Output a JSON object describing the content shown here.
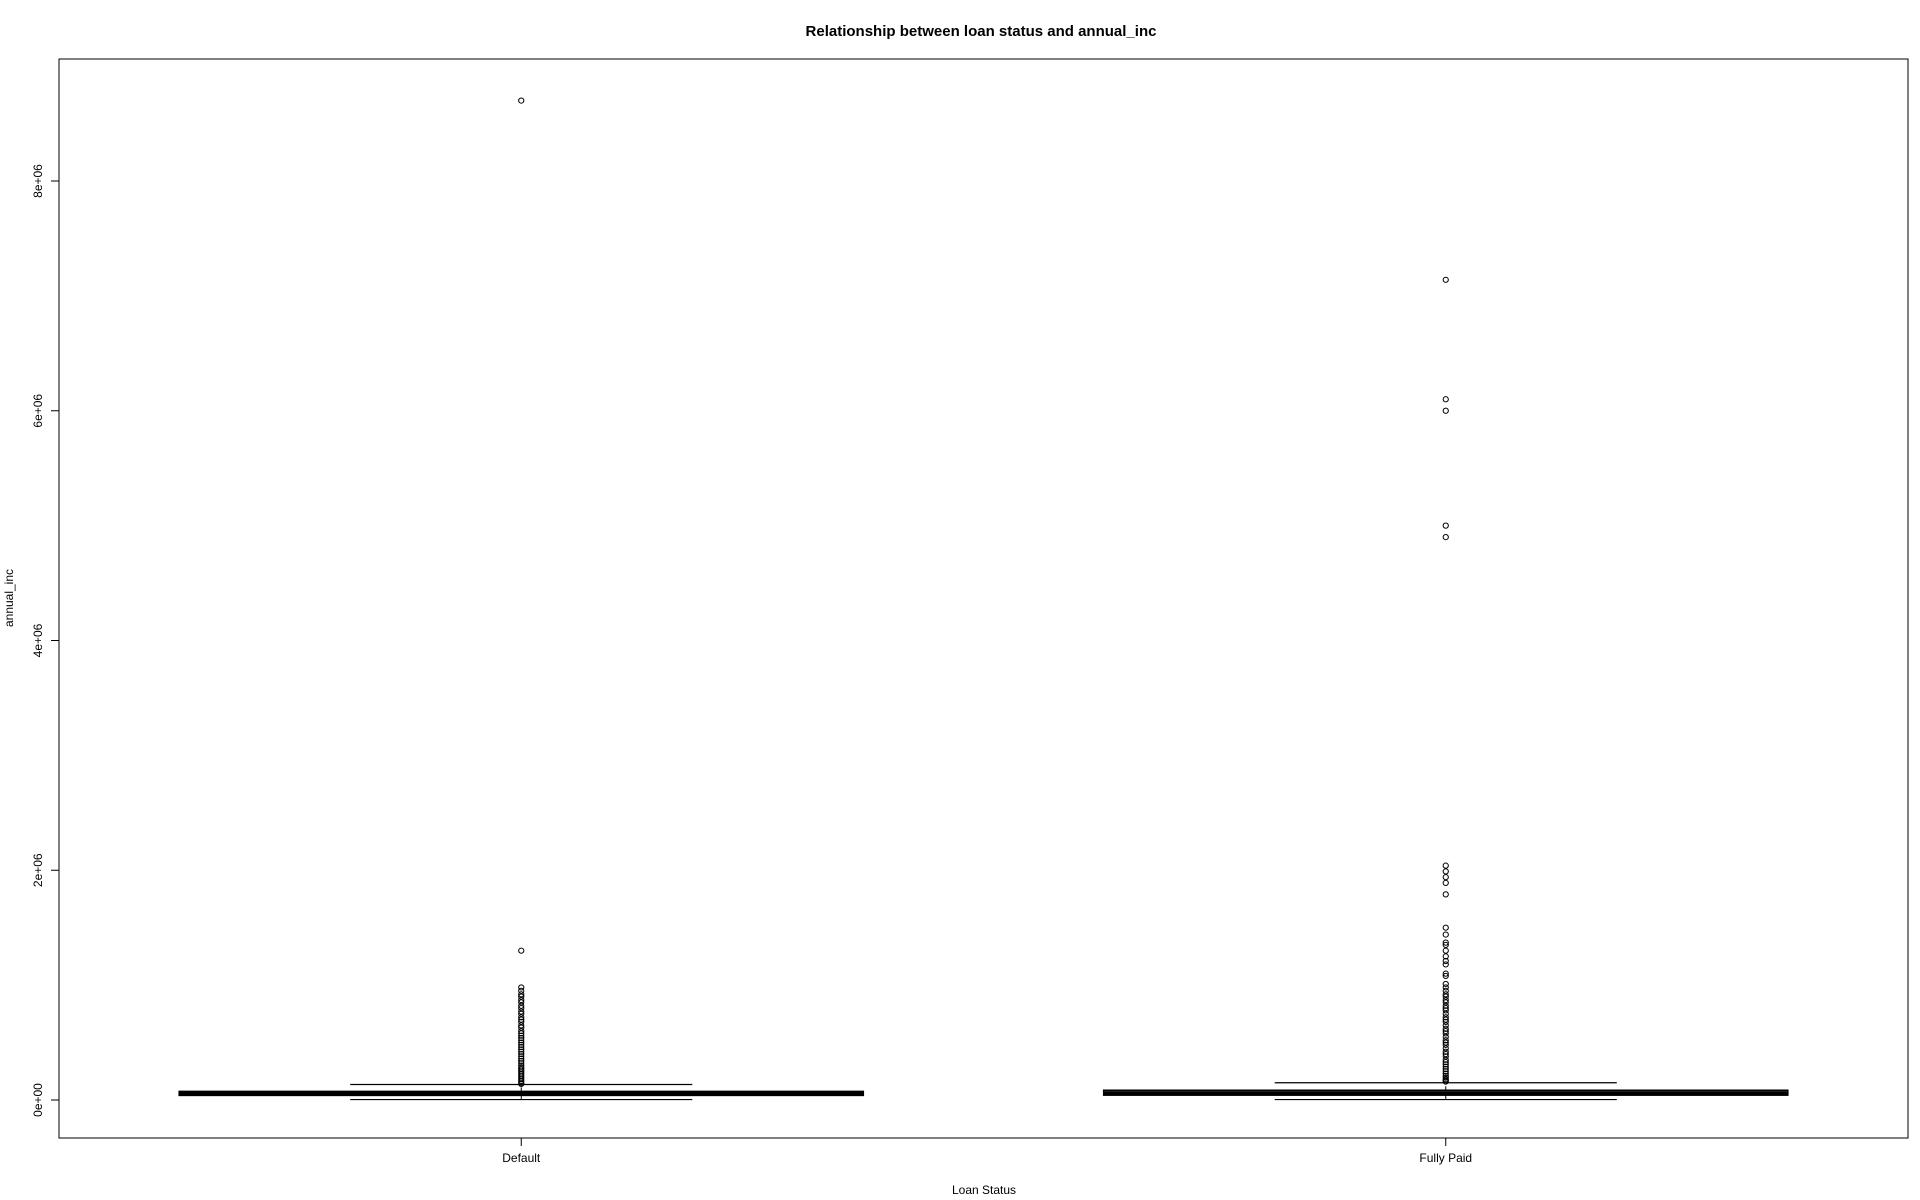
{
  "chart_data": {
    "type": "box",
    "title": "Relationship between loan status and  annual_inc",
    "xlabel": "Loan Status",
    "ylabel": "annual_inc",
    "categories": [
      "Default",
      "Fully Paid"
    ],
    "ylim": [
      -350000,
      9000000
    ],
    "yticks": [
      {
        "value": 0,
        "label": "0e+00"
      },
      {
        "value": 2000000,
        "label": "2e+06"
      },
      {
        "value": 4000000,
        "label": "4e+06"
      },
      {
        "value": 6000000,
        "label": "6e+06"
      },
      {
        "value": 8000000,
        "label": "8e+06"
      }
    ],
    "grid": false,
    "legend": "none",
    "boxes": [
      {
        "category": "Default",
        "whisker_low": 4000,
        "q1": 40000,
        "median": 56000,
        "q3": 75000,
        "whisker_high": 135000,
        "outliers": [
          8700000,
          1300000,
          980000,
          950000,
          920000,
          900000,
          870000,
          850000,
          820000,
          800000,
          770000,
          750000,
          720000,
          700000,
          680000,
          650000,
          630000,
          600000,
          580000,
          560000,
          540000,
          520000,
          500000,
          480000,
          460000,
          440000,
          420000,
          400000,
          380000,
          360000,
          340000,
          320000,
          300000,
          285000,
          270000,
          255000,
          240000,
          225000,
          210000,
          195000,
          180000,
          165000,
          150000,
          140000
        ]
      },
      {
        "category": "Fully Paid",
        "whisker_low": 4000,
        "q1": 42000,
        "median": 60000,
        "q3": 85000,
        "whisker_high": 150000,
        "outliers": [
          7140000,
          6100000,
          6000000,
          5000000,
          4900000,
          2040000,
          1990000,
          1940000,
          1890000,
          1790000,
          1500000,
          1440000,
          1370000,
          1350000,
          1300000,
          1250000,
          1210000,
          1180000,
          1100000,
          1080000,
          1010000,
          980000,
          950000,
          920000,
          900000,
          870000,
          850000,
          820000,
          800000,
          780000,
          750000,
          720000,
          700000,
          680000,
          650000,
          620000,
          600000,
          580000,
          550000,
          520000,
          500000,
          480000,
          450000,
          420000,
          400000,
          380000,
          350000,
          330000,
          310000,
          290000,
          270000,
          250000,
          230000,
          210000,
          195000,
          180000,
          170000,
          160000
        ]
      }
    ]
  }
}
